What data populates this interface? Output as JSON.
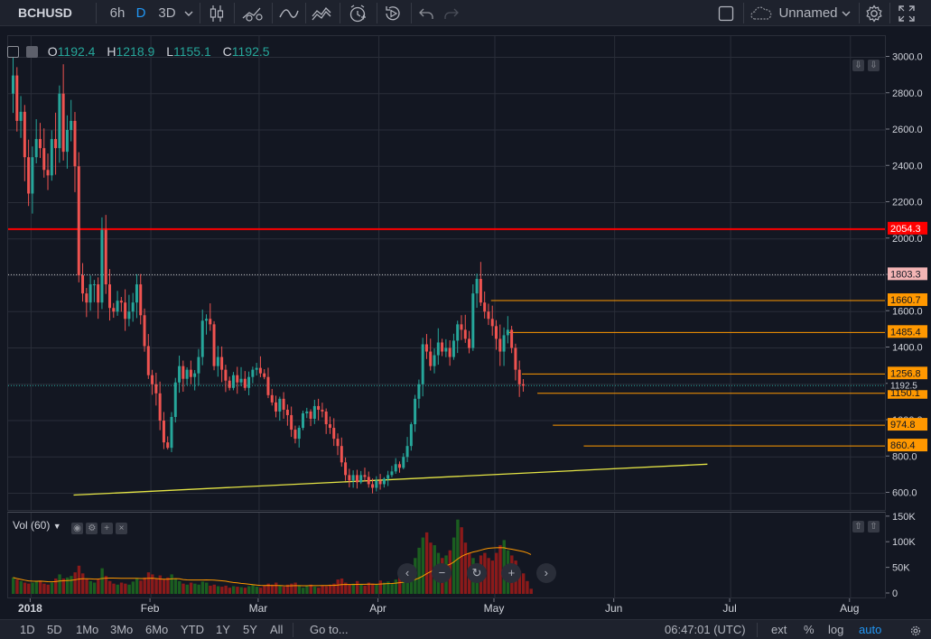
{
  "toolbar": {
    "symbol": "BCHUSD",
    "intervals": [
      "6h",
      "D",
      "3D"
    ],
    "active_interval": "D",
    "layout_name": "Unnamed",
    "icons": [
      "chevron-down-icon",
      "candles-icon",
      "indicators-icon",
      "line-tool-icon",
      "pattern-icon",
      "alert-icon",
      "replay-icon",
      "undo-icon",
      "redo-icon",
      "square-icon",
      "cloud-icon",
      "gear-icon",
      "fullscreen-icon"
    ]
  },
  "legend": {
    "open_label": "O",
    "open": "1192.4",
    "high_label": "H",
    "high": "1218.9",
    "low_label": "L",
    "low": "1155.1",
    "close_label": "C",
    "close": "1192.5"
  },
  "volume_legend": {
    "label": "Vol (60)"
  },
  "colors": {
    "up": "#26a69a",
    "down": "#ef5350",
    "horizontal_line": "#ff0000",
    "target_lines": "#ff9800",
    "trend_line": "#e5e545",
    "vol_ma": "#ff9800",
    "accent": "#2196f3"
  },
  "chart_data": {
    "type": "candlestick",
    "symbol": "BCHUSD",
    "interval": "D",
    "price_axis": {
      "ticks": [
        600,
        800,
        1000,
        1200,
        1400,
        1600,
        1800,
        2000,
        2200,
        2400,
        2600,
        2800,
        3000
      ],
      "range": [
        440,
        3100
      ]
    },
    "time_axis": {
      "labels": [
        "2018",
        "Feb",
        "Mar",
        "Apr",
        "May",
        "Jun",
        "Jul",
        "Aug"
      ]
    },
    "volume_axis": {
      "ticks": [
        0,
        50000,
        100000,
        150000
      ],
      "tick_labels": [
        "0",
        "50K",
        "100K",
        "150K"
      ],
      "max": 155000
    },
    "last_price": 1192.5,
    "price_labels": [
      {
        "value": "2054.3",
        "kind": "red-line"
      },
      {
        "value": "1803.3",
        "kind": "dotted-line"
      },
      {
        "value": "1660.7",
        "kind": "target"
      },
      {
        "value": "1485.4",
        "kind": "target"
      },
      {
        "value": "1256.8",
        "kind": "target"
      },
      {
        "value": "1150.1",
        "kind": "target"
      },
      {
        "value": "974.8",
        "kind": "target"
      },
      {
        "value": "860.4",
        "kind": "target"
      }
    ],
    "horizontal_lines": [
      {
        "price": 2054.3,
        "style": "solid",
        "color": "#ff0000",
        "extent": "full"
      },
      {
        "price": 1803.3,
        "style": "dotted",
        "color": "#c0c0c0",
        "extent": "full"
      },
      {
        "price": 1192.5,
        "style": "dotted",
        "color": "#26a69a",
        "extent": "full"
      }
    ],
    "target_lines": [
      {
        "price": 1660.7,
        "start_day": 124
      },
      {
        "price": 1485.4,
        "start_day": 128
      },
      {
        "price": 1256.8,
        "start_day": 132
      },
      {
        "price": 1150.1,
        "start_day": 136
      },
      {
        "price": 974.8,
        "start_day": 140
      },
      {
        "price": 860.4,
        "start_day": 148
      }
    ],
    "trend_line": {
      "start": {
        "day": 16,
        "price": 590
      },
      "end": {
        "day": 180,
        "price": 760
      }
    },
    "start_date": "2017-12-27",
    "closes": [
      2900,
      2650,
      2700,
      2450,
      2250,
      2450,
      2550,
      2500,
      2380,
      2350,
      2550,
      2500,
      2800,
      2480,
      2600,
      2650,
      2400,
      1800,
      1700,
      1650,
      1750,
      1750,
      1650,
      2050,
      1750,
      1620,
      1600,
      1660,
      1650,
      1560,
      1600,
      1650,
      1750,
      1580,
      1410,
      1250,
      1200,
      1150,
      1000,
      880,
      850,
      1020,
      1210,
      1300,
      1230,
      1280,
      1240,
      1260,
      1350,
      1550,
      1560,
      1530,
      1300,
      1350,
      1280,
      1220,
      1180,
      1250,
      1210,
      1230,
      1180,
      1240,
      1280,
      1290,
      1260,
      1240,
      1140,
      1100,
      1050,
      1120,
      1060,
      1030,
      950,
      900,
      960,
      1040,
      1050,
      1010,
      1080,
      1060,
      1050,
      980,
      960,
      900,
      860,
      770,
      700,
      670,
      700,
      660,
      700,
      690,
      650,
      630,
      670,
      650,
      680,
      700,
      720,
      760,
      740,
      800,
      860,
      980,
      1120,
      1200,
      1420,
      1380,
      1300,
      1360,
      1430,
      1380,
      1400,
      1350,
      1440,
      1530,
      1500,
      1450,
      1400,
      1700,
      1780,
      1650,
      1600,
      1560,
      1520,
      1450,
      1380,
      1470,
      1500,
      1400,
      1280,
      1200,
      1192
    ],
    "volumes": [
      32,
      28,
      25,
      22,
      20,
      22,
      24,
      26,
      20,
      18,
      22,
      30,
      38,
      30,
      32,
      35,
      42,
      55,
      40,
      30,
      25,
      22,
      28,
      50,
      35,
      25,
      20,
      18,
      22,
      20,
      18,
      24,
      30,
      26,
      32,
      42,
      38,
      30,
      36,
      28,
      32,
      38,
      30,
      25,
      20,
      18,
      22,
      20,
      18,
      24,
      22,
      16,
      18,
      15,
      14,
      16,
      12,
      15,
      14,
      13,
      12,
      15,
      18,
      14,
      12,
      16,
      20,
      18,
      22,
      16,
      14,
      18,
      20,
      22,
      16,
      12,
      15,
      18,
      14,
      12,
      16,
      15,
      18,
      20,
      28,
      30,
      22,
      18,
      20,
      25,
      18,
      16,
      22,
      20,
      18,
      26,
      22,
      24,
      20,
      28,
      32,
      34,
      40,
      52,
      70,
      90,
      110,
      120,
      100,
      95,
      80,
      70,
      75,
      85,
      110,
      145,
      130,
      100,
      80,
      70,
      60,
      75,
      80,
      70,
      65,
      80,
      95,
      105,
      85,
      75,
      65,
      45,
      40,
      25,
      10
    ]
  },
  "bottom_bar": {
    "ranges": [
      "1D",
      "5D",
      "1Mo",
      "3Mo",
      "6Mo",
      "YTD",
      "1Y",
      "5Y",
      "All"
    ],
    "goto": "Go to...",
    "clock": "06:47:01 (UTC)",
    "ext": "ext",
    "percent": "%",
    "log": "log",
    "auto": "auto"
  }
}
